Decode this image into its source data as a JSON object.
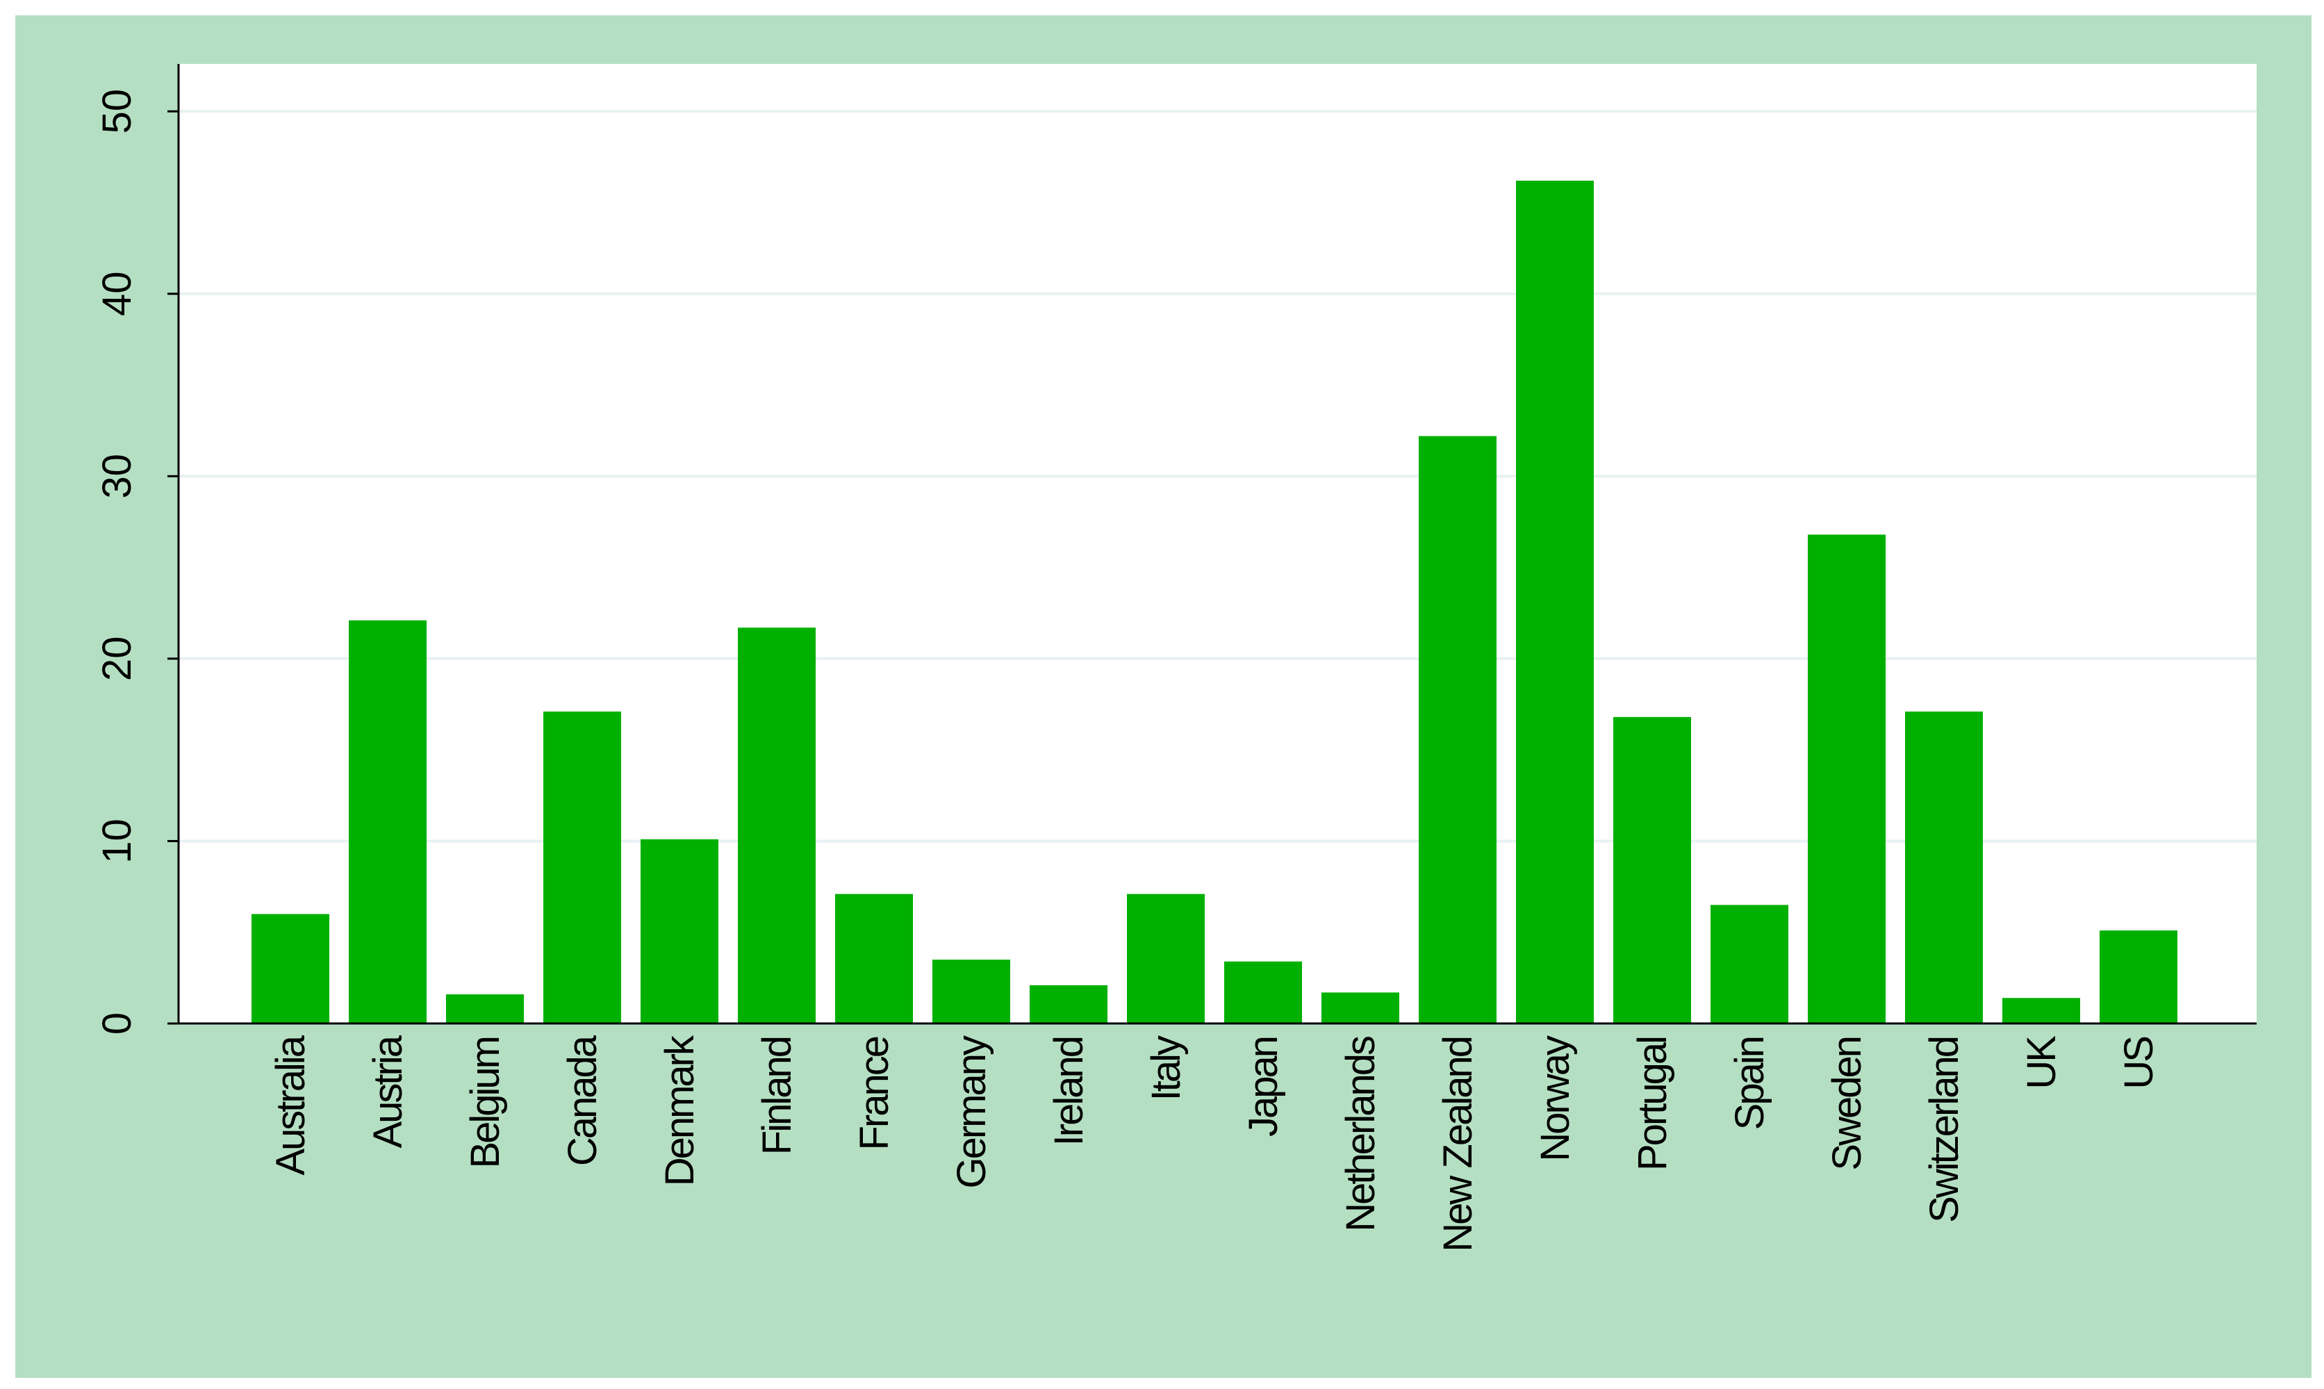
{
  "chart_data": {
    "type": "bar",
    "categories": [
      "Australia",
      "Austria",
      "Belgium",
      "Canada",
      "Denmark",
      "Finland",
      "France",
      "Germany",
      "Ireland",
      "Italy",
      "Japan",
      "Netherlands",
      "New Zealand",
      "Norway",
      "Portugal",
      "Spain",
      "Sweden",
      "Switzerland",
      "UK",
      "US"
    ],
    "values": [
      6.0,
      22.1,
      1.6,
      17.1,
      10.1,
      21.7,
      7.1,
      3.5,
      2.1,
      7.1,
      3.4,
      1.7,
      32.2,
      46.2,
      16.8,
      6.5,
      26.8,
      17.1,
      1.4,
      5.1
    ],
    "color": "#00b000",
    "ylim": [
      0,
      52.6
    ],
    "yticks": [
      0,
      10,
      20,
      30,
      40,
      50
    ],
    "grid": true
  }
}
